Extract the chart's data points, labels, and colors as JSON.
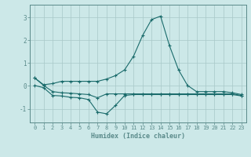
{
  "xlabel": "Humidex (Indice chaleur)",
  "bg_color": "#cce8e8",
  "grid_color": "#a8c8c8",
  "line_color": "#1a6b6b",
  "spine_color": "#5a8a8a",
  "xlim": [
    -0.5,
    23.5
  ],
  "ylim": [
    -1.6,
    3.55
  ],
  "yticks": [
    -1,
    0,
    1,
    2,
    3
  ],
  "xticks": [
    0,
    1,
    2,
    3,
    4,
    5,
    6,
    7,
    8,
    9,
    10,
    11,
    12,
    13,
    14,
    15,
    16,
    17,
    18,
    19,
    20,
    21,
    22,
    23
  ],
  "x": [
    0,
    1,
    2,
    3,
    4,
    5,
    6,
    7,
    8,
    9,
    10,
    11,
    12,
    13,
    14,
    15,
    16,
    17,
    18,
    19,
    20,
    21,
    22,
    23
  ],
  "line_top_y": [
    0.35,
    0.05,
    0.1,
    0.2,
    0.2,
    0.2,
    0.2,
    0.2,
    0.3,
    0.45,
    0.7,
    1.3,
    2.2,
    2.9,
    3.05,
    1.75,
    0.7,
    0.02,
    -0.25,
    -0.25,
    -0.25,
    -0.25,
    -0.3,
    -0.38
  ],
  "line_mid_y": [
    0.35,
    0.02,
    -0.25,
    -0.3,
    -0.32,
    -0.35,
    -0.38,
    -0.52,
    -0.35,
    -0.35,
    -0.35,
    -0.35,
    -0.35,
    -0.35,
    -0.35,
    -0.35,
    -0.35,
    -0.35,
    -0.35,
    -0.35,
    -0.35,
    -0.35,
    -0.35,
    -0.42
  ],
  "line_bot_y": [
    0.02,
    -0.08,
    -0.42,
    -0.44,
    -0.5,
    -0.52,
    -0.6,
    -1.15,
    -1.22,
    -0.85,
    -0.42,
    -0.38,
    -0.38,
    -0.38,
    -0.38,
    -0.38,
    -0.38,
    -0.38,
    -0.38,
    -0.38,
    -0.38,
    -0.38,
    -0.38,
    -0.44
  ]
}
